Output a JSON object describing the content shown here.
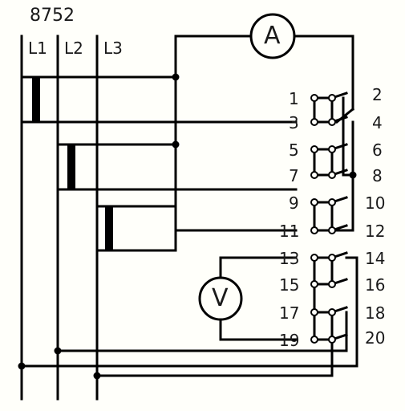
{
  "diagram": {
    "title": "8752",
    "line_labels": {
      "l1": "L1",
      "l2": "L2",
      "l3": "L3"
    },
    "ammeter_label": "A",
    "voltmeter_label": "V",
    "terminals_left": [
      "1",
      "3",
      "5",
      "7",
      "9",
      "11",
      "13",
      "15",
      "17",
      "19"
    ],
    "terminals_right": [
      "2",
      "4",
      "6",
      "8",
      "10",
      "12",
      "14",
      "16",
      "18",
      "20"
    ],
    "line_color": "#000000",
    "background_color": "#fffffa"
  }
}
